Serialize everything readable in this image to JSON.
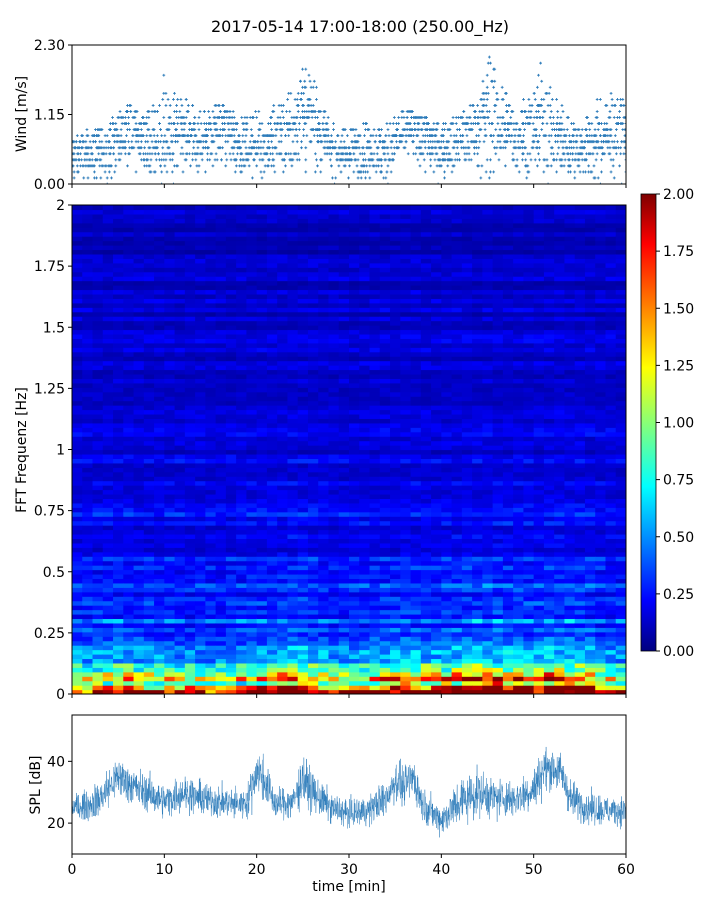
{
  "title": "2017-05-14 17:00-18:00 (250.00_Hz)",
  "colors": {
    "series": "#2a7ab9",
    "colormap": "jet"
  },
  "chart_data": [
    {
      "id": "wind",
      "type": "scatter",
      "ylabel": "Wind [m/s]",
      "xlim": [
        0,
        60
      ],
      "ylim": [
        0,
        2.3
      ],
      "yticks": [
        "0.00",
        "1.15",
        "2.30"
      ],
      "x_unit": "min",
      "quantization_step": 0.1,
      "envelope": {
        "x": [
          0,
          2,
          4,
          6,
          8,
          10,
          12,
          14,
          16,
          18,
          20,
          22,
          24,
          25,
          26,
          28,
          30,
          32,
          34,
          36,
          38,
          40,
          42,
          44,
          45,
          46,
          48,
          50,
          51,
          52,
          54,
          56,
          58,
          60
        ],
        "min": [
          0,
          0,
          0,
          0,
          0,
          0,
          0,
          0,
          0,
          0,
          0.1,
          0,
          0,
          0.1,
          0.1,
          0,
          0,
          0,
          0,
          0,
          0,
          0,
          0,
          0,
          0.1,
          0.1,
          0,
          0,
          0,
          0,
          0,
          0,
          0,
          0
        ],
        "typical": [
          0.5,
          0.5,
          0.6,
          0.9,
          0.7,
          0.7,
          0.8,
          0.7,
          0.9,
          0.7,
          0.6,
          0.7,
          0.9,
          1.2,
          1.1,
          0.6,
          0.5,
          0.6,
          0.5,
          0.9,
          0.8,
          0.6,
          0.7,
          0.9,
          1.2,
          1.0,
          0.8,
          0.9,
          1.0,
          0.9,
          0.6,
          0.6,
          0.8,
          0.8
        ],
        "max": [
          0.8,
          0.9,
          1.0,
          1.3,
          1.1,
          1.8,
          1.4,
          1.2,
          1.3,
          1.1,
          1.2,
          1.3,
          1.6,
          1.9,
          1.8,
          1.0,
          0.9,
          1.0,
          1.0,
          1.2,
          1.1,
          1.0,
          1.1,
          1.4,
          2.3,
          1.8,
          1.3,
          1.5,
          2.1,
          1.5,
          1.1,
          1.1,
          1.7,
          1.3
        ]
      }
    },
    {
      "id": "spectrogram",
      "type": "heatmap",
      "ylabel": "FFT Frequenz [Hz]",
      "xlim": [
        0,
        60
      ],
      "ylim": [
        0,
        2
      ],
      "yticks": [
        "0",
        "0.25",
        "0.5",
        "0.75",
        "1",
        "1.25",
        "1.5",
        "1.75",
        "2"
      ],
      "x_unit": "min",
      "colormap": "jet",
      "color_range": [
        0,
        2
      ],
      "colorbar_ticks": [
        "0.00",
        "0.25",
        "0.50",
        "0.75",
        "1.00",
        "1.25",
        "1.50",
        "1.75",
        "2.00"
      ],
      "activity_by_minute": {
        "x": [
          0,
          5,
          10,
          15,
          20,
          22,
          25,
          27,
          30,
          33,
          36,
          38,
          40,
          42,
          45,
          48,
          50,
          52,
          55,
          58,
          60
        ],
        "intensity": [
          0.6,
          0.7,
          0.6,
          0.5,
          0.7,
          0.8,
          0.9,
          0.7,
          0.5,
          0.7,
          0.9,
          0.8,
          0.7,
          0.9,
          1.0,
          0.9,
          0.8,
          1.0,
          0.9,
          0.6,
          0.5
        ]
      }
    },
    {
      "id": "spl",
      "type": "line",
      "ylabel": "SPL [dB]",
      "xlabel": "time [min]",
      "xlim": [
        0,
        60
      ],
      "ylim": [
        10,
        55
      ],
      "yticks": [
        "20",
        "40"
      ],
      "xticks": [
        "0",
        "10",
        "20",
        "30",
        "40",
        "50",
        "60"
      ],
      "envelope": {
        "x": [
          0,
          2,
          3,
          5,
          6,
          8,
          10,
          12,
          14,
          16,
          18,
          19,
          20,
          21,
          22,
          24,
          25,
          26,
          28,
          30,
          32,
          34,
          35,
          36,
          37,
          38,
          40,
          42,
          44,
          46,
          48,
          50,
          51,
          52,
          53,
          54,
          56,
          58,
          60
        ],
        "mean": [
          25,
          26,
          28,
          35,
          33,
          30,
          27,
          30,
          28,
          27,
          26,
          27,
          37,
          33,
          26,
          27,
          35,
          30,
          25,
          23,
          24,
          28,
          34,
          32,
          35,
          26,
          21,
          27,
          30,
          28,
          28,
          31,
          37,
          38,
          36,
          28,
          25,
          24,
          24
        ],
        "low": [
          20,
          20,
          21,
          25,
          24,
          22,
          21,
          22,
          21,
          20,
          20,
          21,
          24,
          23,
          20,
          20,
          22,
          21,
          19,
          18,
          18,
          20,
          23,
          23,
          24,
          19,
          15,
          19,
          20,
          20,
          20,
          22,
          25,
          26,
          25,
          20,
          18,
          18,
          18
        ],
        "high": [
          31,
          33,
          38,
          43,
          41,
          38,
          35,
          38,
          36,
          34,
          33,
          35,
          47,
          41,
          33,
          35,
          44,
          38,
          32,
          30,
          31,
          36,
          42,
          40,
          43,
          33,
          28,
          41,
          40,
          37,
          36,
          40,
          45,
          44,
          43,
          36,
          32,
          31,
          31
        ]
      }
    }
  ]
}
